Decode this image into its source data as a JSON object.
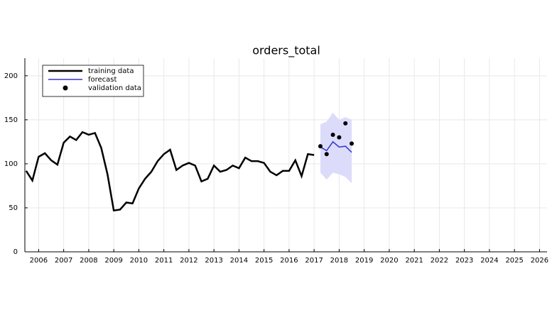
{
  "chart_data": {
    "type": "line",
    "title": "orders_total",
    "xlim": [
      2005.45,
      2026.3
    ],
    "xticks": [
      2006,
      2007,
      2008,
      2009,
      2010,
      2011,
      2012,
      2013,
      2014,
      2015,
      2016,
      2017,
      2018,
      2019,
      2020,
      2021,
      2022,
      2023,
      2024,
      2025,
      2026
    ],
    "ylim": [
      0,
      220
    ],
    "yticks": [
      0,
      50,
      100,
      150,
      200
    ],
    "grid": true,
    "legend": "top-left",
    "series": [
      {
        "name": "training data",
        "style": "line",
        "color": "#000000",
        "x": [
          2005.5,
          2005.75,
          2006,
          2006.25,
          2006.5,
          2006.75,
          2007,
          2007.25,
          2007.5,
          2007.75,
          2008,
          2008.25,
          2008.5,
          2008.75,
          2009,
          2009.25,
          2009.5,
          2009.75,
          2010,
          2010.25,
          2010.5,
          2010.75,
          2011,
          2011.25,
          2011.5,
          2011.75,
          2012,
          2012.25,
          2012.5,
          2012.75,
          2013,
          2013.25,
          2013.5,
          2013.75,
          2014,
          2014.25,
          2014.5,
          2014.75,
          2015,
          2015.25,
          2015.5,
          2015.75,
          2016,
          2016.25,
          2016.5,
          2016.75,
          2017
        ],
        "values": [
          92,
          81,
          108,
          112,
          104,
          99,
          124,
          131,
          127,
          136,
          133,
          135,
          118,
          88,
          47,
          48,
          56,
          55,
          72,
          83,
          91,
          103,
          111,
          116,
          93,
          98,
          101,
          98,
          80,
          83,
          98,
          91,
          93,
          98,
          95,
          107,
          103,
          103,
          101,
          91,
          87,
          92,
          92,
          104,
          86,
          111,
          110
        ]
      },
      {
        "name": "forecast",
        "style": "line",
        "color": "#3333cc",
        "band_color": "#dcdcfa",
        "x": [
          2017.25,
          2017.5,
          2017.75,
          2018,
          2018.25,
          2018.5
        ],
        "values": [
          119,
          115,
          125,
          119,
          120,
          113
        ],
        "upper": [
          145,
          148,
          158,
          150,
          153,
          150
        ],
        "lower": [
          90,
          82,
          90,
          88,
          85,
          78
        ]
      },
      {
        "name": "validation data",
        "style": "scatter",
        "color": "#000000",
        "x": [
          2017.25,
          2017.5,
          2017.75,
          2018,
          2018.25,
          2018.5
        ],
        "values": [
          120,
          111,
          133,
          130,
          146,
          123
        ]
      }
    ]
  }
}
